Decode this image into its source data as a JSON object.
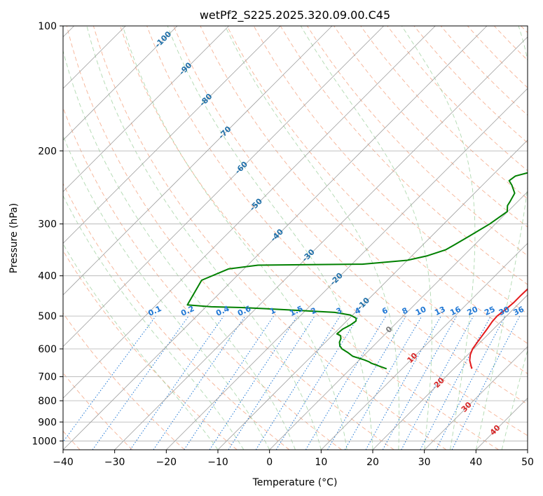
{
  "chart_data": {
    "type": "line",
    "subtype": "skew-T log-p diagram",
    "title": "wetPf2_S225.2025.320.09.00.C45",
    "xlabel": "Temperature (°C)",
    "ylabel": "Pressure (hPa)",
    "xlim": [
      -40,
      50
    ],
    "ylim": [
      1050,
      100
    ],
    "x_ticks": [
      -40,
      -30,
      -20,
      -10,
      0,
      10,
      20,
      30,
      40,
      50
    ],
    "x_tick_labels": [
      "−40",
      "−30",
      "−20",
      "−10",
      "0",
      "10",
      "20",
      "30",
      "40",
      "50"
    ],
    "y_ticks": [
      1000,
      900,
      800,
      700,
      600,
      500,
      400,
      300,
      200,
      100
    ],
    "y_tick_labels": [
      "1000",
      "900",
      "800",
      "700",
      "600",
      "500",
      "400",
      "300",
      "200",
      "100"
    ],
    "colors": {
      "temperature": "#e41a1c",
      "dewpoint": "#008000",
      "isotherm": "#a0a0a0",
      "dry_adiabat": "#f4a582",
      "moist_adiabat": "#8fc98f",
      "mixing_ratio": "#1f77d4",
      "wetbulb_label": "#d62728",
      "upper_label": "#1f6fa8",
      "zero_label": "#7a7a7a"
    },
    "series": [
      {
        "name": "Temperature",
        "color": "#e41a1c",
        "points": [
          [
            23.5,
            670
          ],
          [
            21.5,
            640
          ],
          [
            20.5,
            620
          ],
          [
            19.8,
            600
          ],
          [
            19.3,
            570
          ],
          [
            18.8,
            540
          ],
          [
            18.3,
            515
          ],
          [
            18.2,
            500
          ],
          [
            18.5,
            485
          ],
          [
            18.8,
            465
          ],
          [
            18.8,
            445
          ],
          [
            18.9,
            425
          ],
          [
            18.8,
            410
          ],
          [
            18.5,
            395
          ],
          [
            17,
            380
          ],
          [
            15.7,
            360
          ],
          [
            14.7,
            340
          ],
          [
            13.8,
            325
          ],
          [
            12.8,
            310
          ],
          [
            10.8,
            290
          ],
          [
            9.4,
            275
          ],
          [
            8.2,
            260
          ],
          [
            7.1,
            245
          ],
          [
            5.9,
            230
          ],
          [
            4.6,
            218
          ],
          [
            3.2,
            207
          ],
          [
            2.0,
            196
          ],
          [
            1.6,
            185
          ],
          [
            1.6,
            172
          ],
          [
            1.2,
            160
          ],
          [
            0.2,
            149
          ],
          [
            -0.2,
            140
          ],
          [
            0.1,
            133
          ],
          [
            1.2,
            127
          ],
          [
            1.8,
            121
          ],
          [
            2.2,
            116
          ],
          [
            2.8,
            110
          ],
          [
            3.6,
            104
          ],
          [
            4.6,
            100
          ]
        ]
      },
      {
        "name": "Dewpoint",
        "color": "#008000",
        "points": [
          [
            7,
            670
          ],
          [
            4,
            655
          ],
          [
            3,
            650
          ],
          [
            2.3,
            645
          ],
          [
            1,
            638
          ],
          [
            -2,
            625
          ],
          [
            -3.7,
            612
          ],
          [
            -5.5,
            600
          ],
          [
            -6.5,
            590
          ],
          [
            -7.3,
            578
          ],
          [
            -7.7,
            567
          ],
          [
            -8.3,
            558
          ],
          [
            -9.4,
            552
          ],
          [
            -9.2,
            538
          ],
          [
            -8.5,
            525
          ],
          [
            -8.2,
            514
          ],
          [
            -8.7,
            506
          ],
          [
            -10.5,
            497
          ],
          [
            -14,
            490
          ],
          [
            -25,
            482
          ],
          [
            -33,
            477
          ],
          [
            -39,
            475
          ],
          [
            -44,
            470
          ],
          [
            -46,
            410
          ],
          [
            -43,
            385
          ],
          [
            -38,
            377
          ],
          [
            -28,
            376
          ],
          [
            -18,
            375
          ],
          [
            -10,
            367
          ],
          [
            -7,
            358
          ],
          [
            -4.6,
            346
          ],
          [
            -3.9,
            337
          ],
          [
            -2.7,
            321
          ],
          [
            -1.1,
            300
          ],
          [
            -0.1,
            280
          ],
          [
            -1.2,
            271
          ],
          [
            -1.5,
            265
          ],
          [
            -2.2,
            253
          ],
          [
            -4.3,
            242
          ],
          [
            -5.7,
            236
          ],
          [
            -5.4,
            230
          ],
          [
            -2.4,
            223
          ],
          [
            -1.4,
            215
          ],
          [
            -1.0,
            204
          ],
          [
            -0.6,
            195
          ],
          [
            -1.2,
            186
          ],
          [
            -2.1,
            176
          ],
          [
            -1.9,
            165
          ],
          [
            -1.0,
            154
          ],
          [
            -0.3,
            144
          ],
          [
            0.2,
            134
          ],
          [
            0.4,
            124
          ],
          [
            0.6,
            114
          ],
          [
            1.2,
            106
          ],
          [
            1.5,
            100
          ]
        ]
      }
    ],
    "annotations": [
      {
        "text": "-100",
        "T": -100,
        "p": 108
      },
      {
        "text": "-90",
        "T": -90,
        "p": 127
      },
      {
        "text": "-80",
        "T": -80,
        "p": 151
      },
      {
        "text": "-70",
        "T": -70,
        "p": 181
      },
      {
        "text": "-60",
        "T": -60,
        "p": 220
      },
      {
        "text": "-50",
        "T": -50,
        "p": 270
      },
      {
        "text": "-40",
        "T": -40,
        "p": 320
      },
      {
        "text": "-30",
        "T": -30,
        "p": 358
      },
      {
        "text": "-20",
        "T": -20,
        "p": 408
      },
      {
        "text": "-10",
        "T": -10,
        "p": 468
      },
      {
        "text": "0",
        "T": 0,
        "p": 540
      },
      {
        "text": "10",
        "T": 10,
        "p": 632
      },
      {
        "text": "20",
        "T": 20,
        "p": 725
      },
      {
        "text": "30",
        "T": 30,
        "p": 830
      },
      {
        "text": "40",
        "T": 40,
        "p": 943
      }
    ],
    "mixing_ratios": [
      0.1,
      0.2,
      0.4,
      0.6,
      1,
      1.5,
      2,
      3,
      4,
      6,
      8,
      10,
      13,
      16,
      20,
      25,
      30,
      36
    ],
    "mixing_ratio_labels": [
      "0.1",
      "0.2",
      "0.4",
      "0.6",
      "1",
      "1.5",
      "2",
      "3",
      "4",
      "6",
      "8",
      "10",
      "13",
      "16",
      "20",
      "25",
      "30",
      "36"
    ],
    "grid": true
  }
}
